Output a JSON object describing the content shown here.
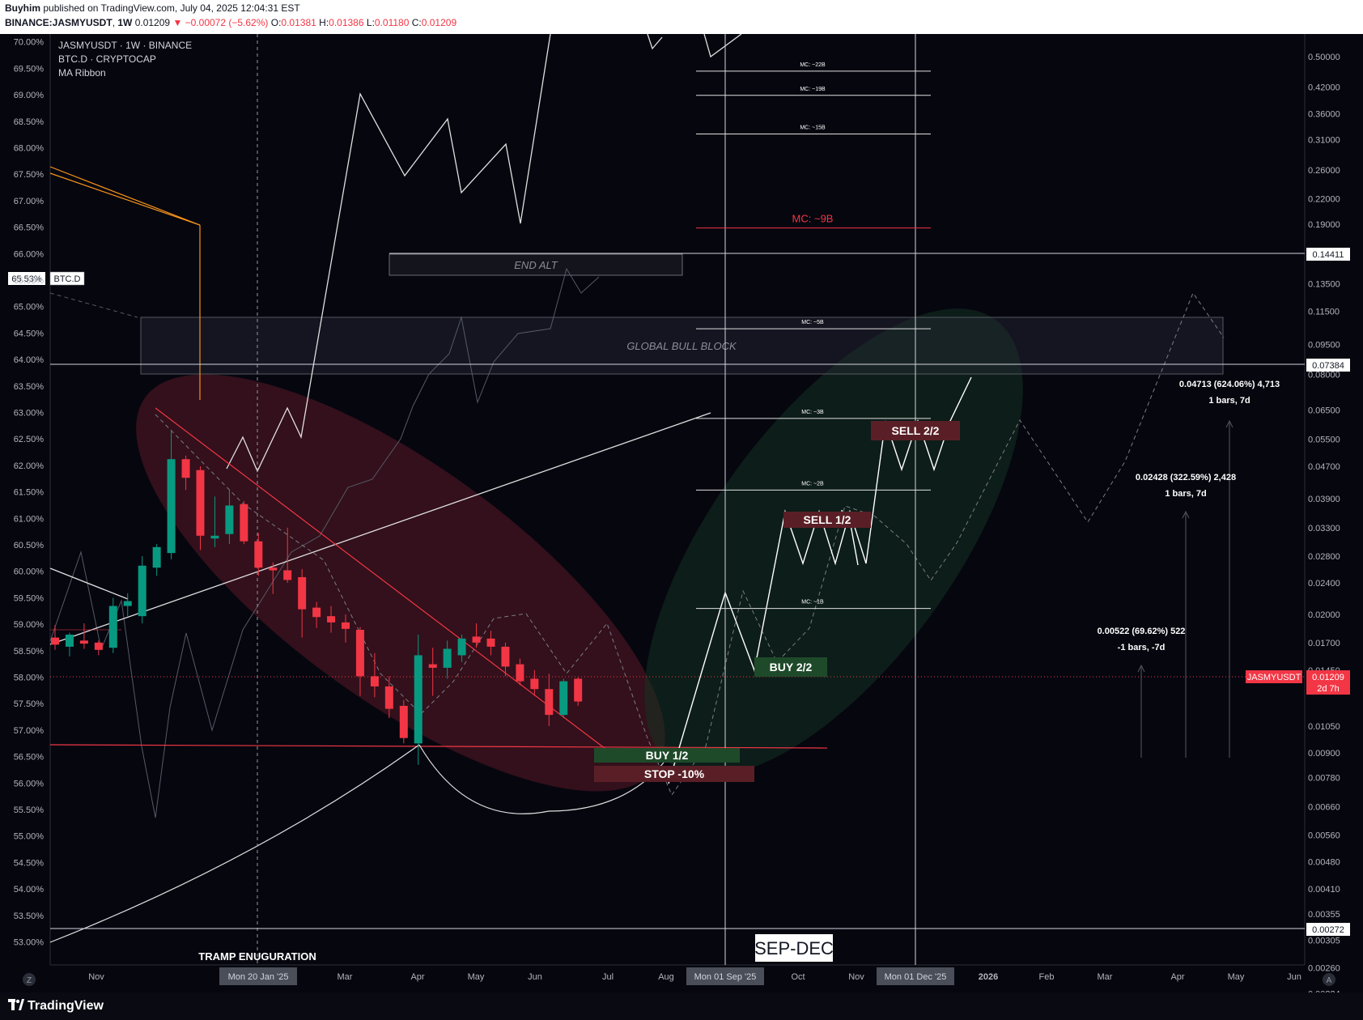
{
  "header": {
    "publisher": "Buyhim",
    "published_text": "published on TradingView.com, July 04, 2025 12:04:31 EST",
    "symbol": "BINANCE:JASMYUSDT",
    "interval": "1W",
    "last": "0.01209",
    "change": "▼ −0.00072 (−5.62%)",
    "ohlc": {
      "o_label": "O:",
      "o": "0.01381",
      "h_label": "H:",
      "h": "0.01386",
      "l_label": "L:",
      "l": "0.01180",
      "c_label": "C:",
      "c": "0.01209"
    }
  },
  "legend": [
    "JASMYUSDT · 1W · BINANCE",
    "BTC.D · CRYPTOCAP",
    "MA Ribbon"
  ],
  "chart_data": {
    "type": "candlestick",
    "symbol": "JASMYUSDT",
    "right_axis_log": true,
    "right_ticks": [
      "0.50000",
      "0.42000",
      "0.36000",
      "0.31000",
      "0.26000",
      "0.22000",
      "0.19000",
      "0.16000",
      "0.13500",
      "0.11500",
      "0.09500",
      "0.08000",
      "0.06500",
      "0.05500",
      "0.04700",
      "0.03900",
      "0.03300",
      "0.02800",
      "0.02400",
      "0.02000",
      "0.01700",
      "0.01450",
      "0.01050",
      "0.00900",
      "0.00780",
      "0.00660",
      "0.00560",
      "0.00480",
      "0.00410",
      "0.00355",
      "0.00305",
      "0.00260",
      "0.00224"
    ],
    "left_ticks": [
      "70.00%",
      "69.50%",
      "69.00%",
      "68.50%",
      "68.00%",
      "67.50%",
      "67.00%",
      "66.50%",
      "66.00%",
      "65.50%",
      "65.00%",
      "64.50%",
      "64.00%",
      "63.50%",
      "63.00%",
      "62.50%",
      "62.00%",
      "61.50%",
      "61.00%",
      "60.50%",
      "60.00%",
      "59.50%",
      "59.00%",
      "58.50%",
      "58.00%",
      "57.50%",
      "57.00%",
      "56.50%",
      "56.00%",
      "55.50%",
      "55.00%",
      "54.50%",
      "54.00%",
      "53.50%",
      "53.00%"
    ],
    "x_ticks": [
      "Nov",
      "Dec",
      "2025",
      "Feb",
      "Mar",
      "Apr",
      "May",
      "Jun",
      "Jul",
      "Aug",
      "Sep",
      "Oct",
      "Nov",
      "Dec",
      "2026",
      "Feb",
      "Mar",
      "Apr",
      "May",
      "Jun"
    ],
    "x_badges": [
      "Mon 20 Jan '25",
      "Mon 01 Sep '25",
      "Mon 01 Dec '25"
    ],
    "price_labels": {
      "level_high": "0.14411",
      "level_mid": "0.07384",
      "level_low": "0.00272",
      "last_symbol": "JASMYUSDT",
      "last_price": "0.01209",
      "countdown": "2d 7h",
      "btcd_value": "65.53%",
      "btcd_name": "BTC.D"
    },
    "candles": [
      {
        "o": 0.0175,
        "h": 0.0188,
        "l": 0.0163,
        "c": 0.0168
      },
      {
        "o": 0.0166,
        "h": 0.018,
        "l": 0.0157,
        "c": 0.0178
      },
      {
        "o": 0.0172,
        "h": 0.019,
        "l": 0.0164,
        "c": 0.0169
      },
      {
        "o": 0.017,
        "h": 0.0172,
        "l": 0.0158,
        "c": 0.0163
      },
      {
        "o": 0.0165,
        "h": 0.022,
        "l": 0.016,
        "c": 0.021
      },
      {
        "o": 0.021,
        "h": 0.0226,
        "l": 0.0198,
        "c": 0.0216
      },
      {
        "o": 0.0198,
        "h": 0.028,
        "l": 0.019,
        "c": 0.0265
      },
      {
        "o": 0.0262,
        "h": 0.03,
        "l": 0.025,
        "c": 0.0295
      },
      {
        "o": 0.0285,
        "h": 0.058,
        "l": 0.0275,
        "c": 0.049
      },
      {
        "o": 0.049,
        "h": 0.05,
        "l": 0.041,
        "c": 0.044
      },
      {
        "o": 0.046,
        "h": 0.047,
        "l": 0.029,
        "c": 0.0315
      },
      {
        "o": 0.031,
        "h": 0.0395,
        "l": 0.0295,
        "c": 0.0315
      },
      {
        "o": 0.0318,
        "h": 0.041,
        "l": 0.03,
        "c": 0.0375
      },
      {
        "o": 0.0378,
        "h": 0.0385,
        "l": 0.03,
        "c": 0.0305
      },
      {
        "o": 0.0305,
        "h": 0.032,
        "l": 0.025,
        "c": 0.0262
      },
      {
        "o": 0.0262,
        "h": 0.027,
        "l": 0.0225,
        "c": 0.0258
      },
      {
        "o": 0.0258,
        "h": 0.033,
        "l": 0.024,
        "c": 0.0244
      },
      {
        "o": 0.0248,
        "h": 0.026,
        "l": 0.0175,
        "c": 0.0206
      },
      {
        "o": 0.0208,
        "h": 0.0215,
        "l": 0.0185,
        "c": 0.0197
      },
      {
        "o": 0.0198,
        "h": 0.021,
        "l": 0.018,
        "c": 0.0191
      },
      {
        "o": 0.0191,
        "h": 0.02,
        "l": 0.017,
        "c": 0.0184
      },
      {
        "o": 0.0183,
        "h": 0.0186,
        "l": 0.0125,
        "c": 0.014
      },
      {
        "o": 0.014,
        "h": 0.016,
        "l": 0.0124,
        "c": 0.0132
      },
      {
        "o": 0.0132,
        "h": 0.014,
        "l": 0.011,
        "c": 0.0116
      },
      {
        "o": 0.0118,
        "h": 0.0122,
        "l": 0.0095,
        "c": 0.0098
      },
      {
        "o": 0.0095,
        "h": 0.0178,
        "l": 0.0084,
        "c": 0.0158
      },
      {
        "o": 0.015,
        "h": 0.0165,
        "l": 0.0125,
        "c": 0.0147
      },
      {
        "o": 0.0147,
        "h": 0.0172,
        "l": 0.0138,
        "c": 0.0164
      },
      {
        "o": 0.0158,
        "h": 0.0178,
        "l": 0.0152,
        "c": 0.0174
      },
      {
        "o": 0.0176,
        "h": 0.019,
        "l": 0.0165,
        "c": 0.017
      },
      {
        "o": 0.0174,
        "h": 0.0182,
        "l": 0.0158,
        "c": 0.0166
      },
      {
        "o": 0.0166,
        "h": 0.017,
        "l": 0.014,
        "c": 0.0148
      },
      {
        "o": 0.015,
        "h": 0.0155,
        "l": 0.0133,
        "c": 0.0136
      },
      {
        "o": 0.0138,
        "h": 0.0145,
        "l": 0.0125,
        "c": 0.013
      },
      {
        "o": 0.013,
        "h": 0.0142,
        "l": 0.0105,
        "c": 0.0112
      },
      {
        "o": 0.0112,
        "h": 0.0138,
        "l": 0.011,
        "c": 0.0136
      },
      {
        "o": 0.0138,
        "h": 0.0139,
        "l": 0.0118,
        "c": 0.0121
      }
    ],
    "mc_levels": [
      {
        "label": "MC: ~22B",
        "price": 0.46
      },
      {
        "label": "MC: ~19B",
        "price": 0.4
      },
      {
        "label": "MC: ~15B",
        "price": 0.32
      },
      {
        "label": "MC: ~9B",
        "price": 0.186
      },
      {
        "label": "MC: ~5B",
        "price": 0.104
      },
      {
        "label": "MC: ~3B",
        "price": 0.062
      },
      {
        "label": "MC: ~2B",
        "price": 0.041
      },
      {
        "label": "MC: ~1B",
        "price": 0.0207
      }
    ],
    "annotations": {
      "end_alt": "END ALT",
      "global_bull_block": "GLOBAL BULL BLOCK",
      "sell_2": "SELL 2/2",
      "sell_1": "SELL 1/2",
      "buy_2": "BUY 2/2",
      "buy_1": "BUY 1/2",
      "stop": "STOP -10%",
      "sep_dec": "SEP-DEC",
      "tramp": "TRAMP ENUGURATION"
    },
    "measures": [
      {
        "line1": "0.04713 (624.06%) 4,713",
        "line2": "1 bars, 7d"
      },
      {
        "line1": "0.02428 (322.59%) 2,428",
        "line2": "1 bars, 7d"
      },
      {
        "line1": "0.00522 (69.62%) 522",
        "line2": "-1 bars, -7d"
      }
    ],
    "corner_left": "Z",
    "corner_right": "A"
  },
  "footer": {
    "brand": "TradingView"
  },
  "colors": {
    "up": "#089981",
    "down": "#f23645",
    "bg": "#06060f",
    "orange": "#f7931a"
  }
}
